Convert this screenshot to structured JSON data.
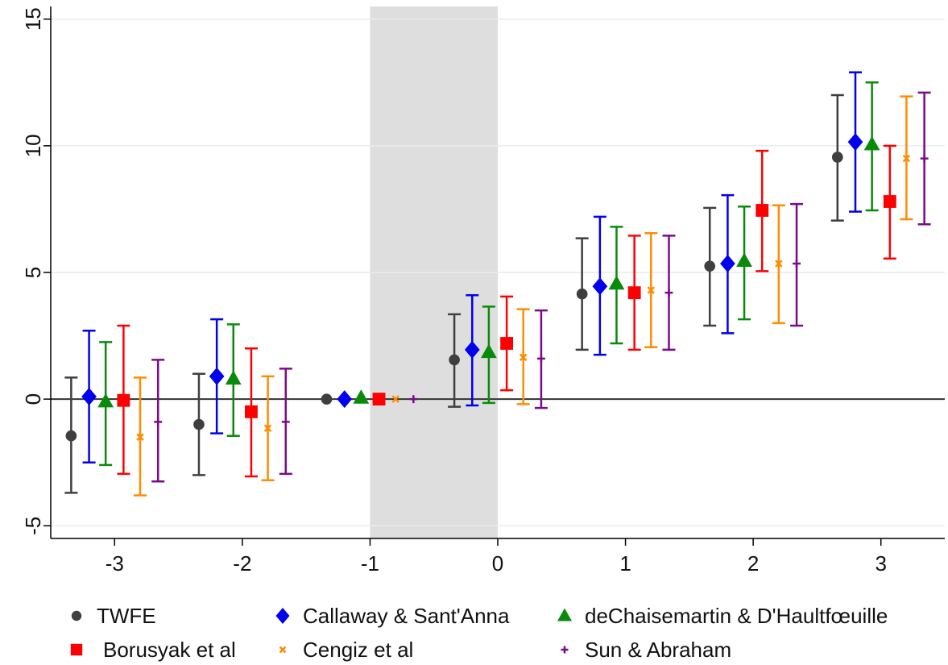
{
  "chart_data": {
    "type": "scatter",
    "title": "",
    "xlabel": "",
    "ylabel": "",
    "xlim": [
      -3.5,
      3.5
    ],
    "ylim": [
      -5.5,
      15.5
    ],
    "xticks": [
      "-3",
      "-2",
      "-1",
      "0",
      "1",
      "2",
      "3"
    ],
    "xtick_values": [
      -3,
      -2,
      -1,
      0,
      1,
      2,
      3
    ],
    "yticks": [
      "-5",
      "0",
      "5",
      "10",
      "15"
    ],
    "ytick_values": [
      -5,
      0,
      5,
      10,
      15
    ],
    "shaded_region": [
      -1,
      0
    ],
    "shaded_color": "#dedede",
    "reference_line_y": 0,
    "grid": true,
    "legend_position": "bottom",
    "series": [
      {
        "name": "TWFE",
        "color": "#3f3f3f",
        "marker": "circle",
        "x": [
          -3.34,
          -2.34,
          -1.34,
          -0.34,
          0.66,
          1.66,
          2.66
        ],
        "values": [
          -1.45,
          -1.0,
          0.0,
          1.55,
          4.15,
          5.25,
          9.55
        ],
        "lower": [
          -3.7,
          -3.0,
          null,
          -0.3,
          1.95,
          2.9,
          7.05
        ],
        "upper": [
          0.85,
          1.0,
          null,
          3.35,
          6.35,
          7.55,
          12.0
        ]
      },
      {
        "name": "Callaway & Sant'Anna",
        "color": "#0000ee",
        "marker": "diamond",
        "x": [
          -3.2,
          -2.2,
          -1.2,
          -0.2,
          0.8,
          1.8,
          2.8
        ],
        "values": [
          0.1,
          0.9,
          0.0,
          1.95,
          4.45,
          5.35,
          10.15
        ],
        "lower": [
          -2.5,
          -1.35,
          null,
          -0.25,
          1.75,
          2.6,
          7.4
        ],
        "upper": [
          2.7,
          3.15,
          null,
          4.1,
          7.2,
          8.05,
          12.9
        ]
      },
      {
        "name": "deChaisemartin & D'Haultfœuille",
        "color": "#0a8a0a",
        "marker": "triangle",
        "x": [
          -3.07,
          -2.07,
          -1.07,
          -0.07,
          0.93,
          1.93,
          2.93
        ],
        "values": [
          -0.1,
          0.8,
          0.05,
          1.85,
          4.55,
          5.45,
          10.05
        ],
        "lower": [
          -2.6,
          -1.45,
          null,
          -0.15,
          2.2,
          3.15,
          7.45
        ],
        "upper": [
          2.25,
          2.95,
          null,
          3.65,
          6.8,
          7.6,
          12.5
        ]
      },
      {
        "name": "Borusyak et al",
        "color": "#ff0000",
        "marker": "square",
        "x": [
          -2.93,
          -1.93,
          -0.93,
          0.07,
          1.07,
          2.07,
          3.07
        ],
        "values": [
          -0.05,
          -0.5,
          0.0,
          2.2,
          4.2,
          7.45,
          7.8
        ],
        "lower": [
          -2.95,
          -3.05,
          null,
          0.35,
          1.95,
          5.05,
          5.55
        ],
        "upper": [
          2.9,
          2.0,
          null,
          4.05,
          6.45,
          9.8,
          10.0
        ]
      },
      {
        "name": "Cengiz et al",
        "color": "#ff8c00",
        "marker": "x",
        "x": [
          -2.8,
          -1.8,
          -0.8,
          0.2,
          1.2,
          2.2,
          3.2
        ],
        "values": [
          -1.5,
          -1.15,
          0.0,
          1.65,
          4.3,
          5.35,
          9.5
        ],
        "lower": [
          -3.8,
          -3.2,
          null,
          -0.2,
          2.05,
          3.0,
          7.1
        ],
        "upper": [
          0.85,
          0.9,
          null,
          3.55,
          6.55,
          7.65,
          11.95
        ]
      },
      {
        "name": "Sun & Abraham",
        "color": "#7b0a8a",
        "marker": "plus",
        "x": [
          -2.66,
          -1.66,
          -0.66,
          0.34,
          1.34,
          2.34,
          3.34
        ],
        "values": [
          -0.9,
          -0.9,
          0.0,
          1.6,
          4.2,
          5.35,
          9.5
        ],
        "lower": [
          -3.25,
          -2.95,
          null,
          -0.35,
          1.95,
          2.9,
          6.9
        ],
        "upper": [
          1.55,
          1.2,
          null,
          3.5,
          6.45,
          7.7,
          12.1
        ]
      }
    ]
  },
  "legend": {
    "items": [
      {
        "label": "TWFE",
        "color": "#3f3f3f",
        "marker": "circle"
      },
      {
        "label": "Callaway & Sant'Anna",
        "color": "#0000ee",
        "marker": "diamond"
      },
      {
        "label": "deChaisemartin & D'Haultfœuille",
        "color": "#0a8a0a",
        "marker": "triangle"
      },
      {
        "label": "Borusyak et al",
        "color": "#ff0000",
        "marker": "square"
      },
      {
        "label": "Cengiz et al",
        "color": "#ff8c00",
        "marker": "x"
      },
      {
        "label": "Sun & Abraham",
        "color": "#7b0a8a",
        "marker": "plus"
      }
    ]
  }
}
